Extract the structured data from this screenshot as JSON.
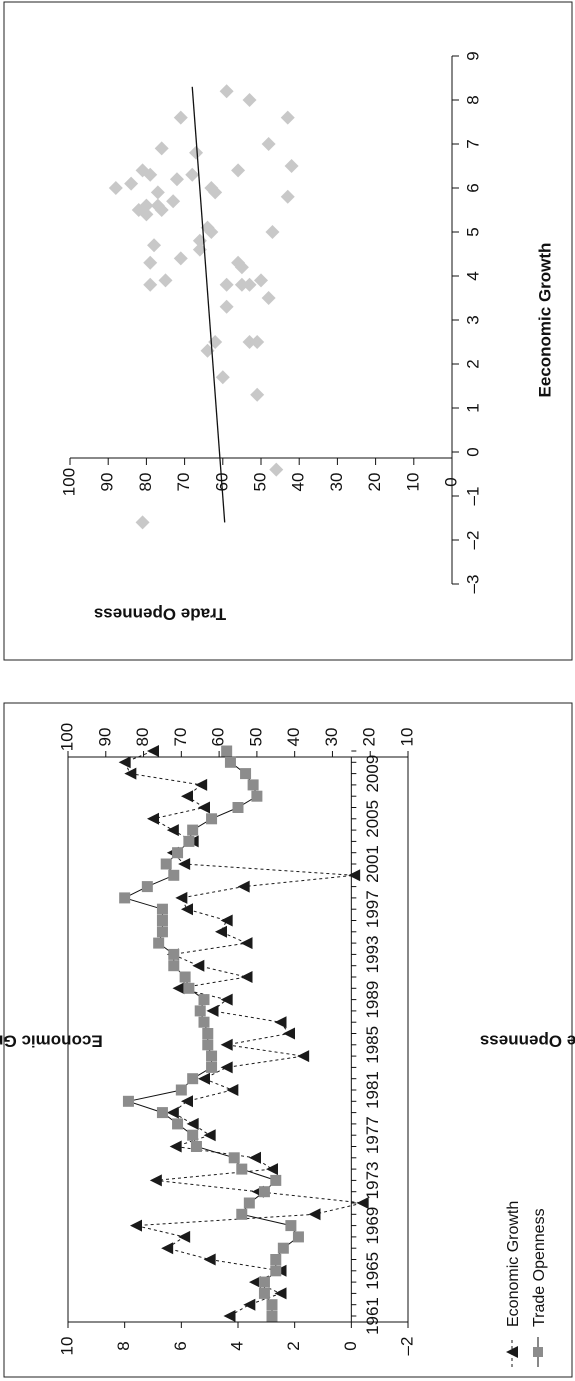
{
  "chart_data": [
    {
      "type": "line",
      "orientation": "rotated-90-ccw",
      "title": "",
      "xlabel": "",
      "ylabel_left": "Economic Growth",
      "ylabel_right": "Trade Openness",
      "x_ticks": [
        "1961",
        "1965",
        "1969",
        "1973",
        "1977",
        "1981",
        "1985",
        "1989",
        "1993",
        "1997",
        "2001",
        "2005",
        "2009"
      ],
      "y_left_ticks": [
        "–2",
        "0",
        "2",
        "4",
        "6",
        "8",
        "10"
      ],
      "y_right_ticks": [
        "10",
        "20",
        "30",
        "40",
        "50",
        "60",
        "70",
        "80",
        "90",
        "100"
      ],
      "y_left_range": [
        -2,
        10
      ],
      "y_right_range": [
        10,
        100
      ],
      "x": [
        1961,
        1962,
        1963,
        1964,
        1965,
        1966,
        1967,
        1968,
        1969,
        1970,
        1971,
        1972,
        1973,
        1974,
        1975,
        1976,
        1977,
        1978,
        1979,
        1980,
        1981,
        1982,
        1983,
        1984,
        1985,
        1986,
        1987,
        1988,
        1989,
        1990,
        1991,
        1992,
        1993,
        1994,
        1995,
        1996,
        1997,
        1998,
        1999,
        2000,
        2001,
        2002,
        2003,
        2004,
        2005,
        2006,
        2007,
        2008,
        2009,
        2010,
        2011
      ],
      "legend_position": "bottom",
      "series": [
        {
          "name": "Economic Growth",
          "axis": "left",
          "marker": "triangle",
          "line": "dashed",
          "color": "#1a1a1a",
          "values": [
            4.3,
            3.6,
            2.5,
            3.4,
            2.5,
            5.0,
            6.5,
            5.9,
            7.6,
            1.3,
            -0.4,
            3.3,
            6.9,
            2.8,
            3.4,
            6.2,
            5.0,
            5.6,
            6.3,
            5.8,
            4.2,
            5.2,
            4.4,
            1.7,
            4.4,
            2.2,
            2.5,
            4.9,
            4.4,
            6.1,
            3.7,
            5.4,
            6.3,
            3.7,
            4.6,
            4.4,
            5.8,
            6.0,
            3.8,
            -0.1,
            5.9,
            6.3,
            5.6,
            6.3,
            7.0,
            5.2,
            5.8,
            5.3,
            7.8,
            8.0,
            7.0
          ]
        },
        {
          "name": "Trade Openness",
          "axis": "right",
          "marker": "square",
          "line": "solid",
          "color": "#8c8c8c",
          "values": [
            46,
            46,
            48,
            48,
            45,
            45,
            43,
            39,
            41,
            54,
            52,
            48,
            45,
            54,
            56,
            66,
            67,
            71,
            75,
            84,
            70,
            67,
            62,
            62,
            63,
            63,
            64,
            65,
            64,
            68,
            69,
            72,
            72,
            76,
            75,
            75,
            75,
            85,
            79,
            72,
            74,
            71,
            68,
            67,
            62,
            55,
            50,
            51,
            53,
            57,
            58
          ]
        }
      ]
    },
    {
      "type": "scatter",
      "orientation": "rotated-90-ccw",
      "title": "",
      "xlabel": "Eeconomic Growth",
      "ylabel": "Trade Openness",
      "x_ticks": [
        "–3",
        "–2",
        "–1",
        "0",
        "1",
        "2",
        "3",
        "4",
        "5",
        "6",
        "7",
        "8",
        "9"
      ],
      "y_ticks": [
        "0",
        "10",
        "20",
        "30",
        "40",
        "50",
        "60",
        "70",
        "80",
        "90",
        "100"
      ],
      "xlim": [
        -3,
        9
      ],
      "ylim": [
        0,
        100
      ],
      "marker": "diamond",
      "color": "#c8c8c8",
      "points": [
        [
          -1.6,
          81
        ],
        [
          -0.4,
          46
        ],
        [
          1.3,
          51
        ],
        [
          1.7,
          60
        ],
        [
          2.3,
          64
        ],
        [
          2.5,
          53
        ],
        [
          2.5,
          51
        ],
        [
          2.5,
          62
        ],
        [
          3.3,
          59
        ],
        [
          3.5,
          48
        ],
        [
          3.8,
          55
        ],
        [
          3.8,
          53
        ],
        [
          3.8,
          59
        ],
        [
          3.8,
          79
        ],
        [
          3.9,
          75
        ],
        [
          3.9,
          50
        ],
        [
          4.2,
          55
        ],
        [
          4.3,
          79
        ],
        [
          4.3,
          56
        ],
        [
          4.4,
          71
        ],
        [
          4.6,
          66
        ],
        [
          4.7,
          78
        ],
        [
          4.8,
          66
        ],
        [
          5.0,
          63
        ],
        [
          5.0,
          47
        ],
        [
          5.1,
          64
        ],
        [
          5.4,
          80
        ],
        [
          5.5,
          82
        ],
        [
          5.5,
          76
        ],
        [
          5.6,
          80
        ],
        [
          5.6,
          77
        ],
        [
          5.7,
          73
        ],
        [
          5.8,
          43
        ],
        [
          5.9,
          62
        ],
        [
          5.9,
          77
        ],
        [
          6.0,
          88
        ],
        [
          6.0,
          63
        ],
        [
          6.1,
          84
        ],
        [
          6.2,
          72
        ],
        [
          6.3,
          79
        ],
        [
          6.3,
          68
        ],
        [
          6.4,
          81
        ],
        [
          6.4,
          56
        ],
        [
          6.5,
          42
        ],
        [
          6.8,
          67
        ],
        [
          6.9,
          76
        ],
        [
          7.0,
          48
        ],
        [
          7.6,
          71
        ],
        [
          7.6,
          43
        ],
        [
          8.0,
          53
        ],
        [
          8.2,
          59
        ]
      ],
      "trendline": {
        "x": [
          -1.6,
          8.3
        ],
        "y": [
          59.5,
          68
        ]
      }
    }
  ]
}
